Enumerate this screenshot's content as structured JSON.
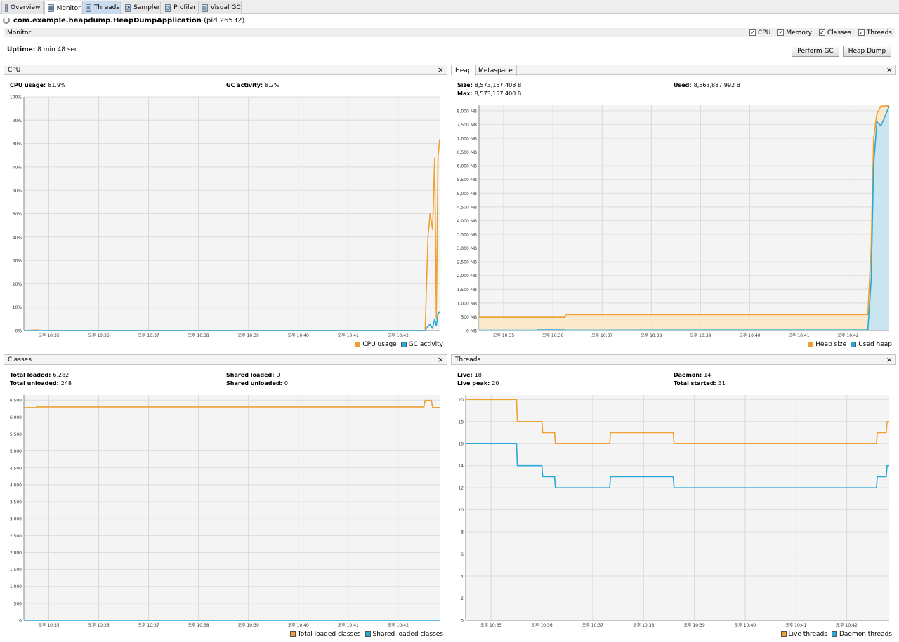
{
  "tabs": [
    {
      "label": "Overview",
      "icon": "overview-icon"
    },
    {
      "label": "Monitor",
      "icon": "monitor-icon"
    },
    {
      "label": "Threads",
      "icon": "threads-icon"
    },
    {
      "label": "Sampler",
      "icon": "sampler-icon"
    },
    {
      "label": "Profiler",
      "icon": "profiler-icon"
    },
    {
      "label": "Visual GC",
      "icon": "visual-gc-icon"
    }
  ],
  "app": {
    "name": "com.example.heapdump.HeapDumpApplication",
    "pid": "(pid 26532)"
  },
  "monitor": {
    "title": "Monitor",
    "checkboxes": [
      {
        "label": "CPU",
        "checked": true
      },
      {
        "label": "Memory",
        "checked": true
      },
      {
        "label": "Classes",
        "checked": true
      },
      {
        "label": "Threads",
        "checked": true
      }
    ],
    "uptime_label": "Uptime:",
    "uptime_value": "8 min 48 sec",
    "perform_gc": "Perform GC",
    "heap_dump": "Heap Dump"
  },
  "colors": {
    "orange": "#f0a030",
    "blue": "#29a8d8",
    "orange_fill": "#fbe6c4",
    "blue_fill": "#bfe4f5"
  },
  "cpu_panel": {
    "title": "CPU",
    "stats": [
      {
        "label": "CPU usage:",
        "value": "81.9%"
      },
      {
        "label": "GC activity:",
        "value": "8.2%"
      }
    ],
    "legend": [
      "CPU usage",
      "GC activity"
    ]
  },
  "heap_panel": {
    "tabs": [
      "Heap",
      "Metaspace"
    ],
    "stats": [
      {
        "label": "Size:",
        "value": "8,573,157,408 B"
      },
      {
        "label": "Used:",
        "value": "8,563,887,992 B"
      },
      {
        "label": "Max:",
        "value": "8,573,157,400 B"
      }
    ],
    "legend": [
      "Heap size",
      "Used heap"
    ]
  },
  "classes_panel": {
    "title": "Classes",
    "stats": [
      {
        "label": "Total loaded:",
        "value": "6,282"
      },
      {
        "label": "Shared loaded:",
        "value": "0"
      },
      {
        "label": "Total unloaded:",
        "value": "248"
      },
      {
        "label": "Shared unloaded:",
        "value": "0"
      }
    ],
    "legend": [
      "Total loaded classes",
      "Shared loaded classes"
    ]
  },
  "threads_panel": {
    "title": "Threads",
    "stats": [
      {
        "label": "Live:",
        "value": "18"
      },
      {
        "label": "Daemon:",
        "value": "14"
      },
      {
        "label": "Live peak:",
        "value": "20"
      },
      {
        "label": "Total started:",
        "value": "31"
      }
    ],
    "legend": [
      "Live threads",
      "Daemon threads"
    ]
  },
  "chart_data": [
    {
      "id": "cpu",
      "type": "line",
      "title": "CPU",
      "x_ticks": [
        "오후 10:35",
        "오후 10:36",
        "오후 10:37",
        "오후 10:38",
        "오후 10:39",
        "오후 10:40",
        "오후 10:41",
        "오후 10:42"
      ],
      "y_ticks": [
        "0%",
        "10%",
        "20%",
        "30%",
        "40%",
        "50%",
        "60%",
        "70%",
        "80%",
        "90%",
        "100%"
      ],
      "ylim": [
        0,
        100
      ],
      "x_range": [
        0,
        100
      ],
      "series": [
        {
          "name": "CPU usage",
          "x": [
            0,
            3,
            5,
            40,
            96.5,
            97.2,
            97.7,
            98.3,
            98.8,
            99.2,
            99.6,
            100
          ],
          "y": [
            0,
            0.3,
            0,
            0,
            0,
            40,
            50,
            43,
            74,
            5,
            74,
            81.9
          ]
        },
        {
          "name": "GC activity",
          "x": [
            0,
            30,
            96.5,
            97.2,
            97.7,
            98.3,
            98.8,
            99.2,
            99.6,
            100
          ],
          "y": [
            0,
            0,
            0,
            2,
            2.5,
            1,
            5,
            2,
            7,
            8.2
          ]
        }
      ]
    },
    {
      "id": "heap",
      "type": "area",
      "title": "Heap",
      "x_ticks": [
        "오후 10:35",
        "오후 10:36",
        "오후 10:37",
        "오후 10:38",
        "오후 10:39",
        "오후 10:40",
        "오후 10:41",
        "오후 10:42"
      ],
      "y_ticks": [
        "0 MB",
        "500 MB",
        "1,000 MB",
        "1,500 MB",
        "2,000 MB",
        "2,500 MB",
        "3,000 MB",
        "3,500 MB",
        "4,000 MB",
        "4,500 MB",
        "5,000 MB",
        "5,500 MB",
        "6,000 MB",
        "6,500 MB",
        "7,000 MB",
        "7,500 MB",
        "8,000 MB"
      ],
      "ylim": [
        0,
        8200
      ],
      "x_range": [
        0,
        100
      ],
      "series": [
        {
          "name": "Heap size",
          "x": [
            0,
            21,
            21.1,
            94,
            94.8,
            95.6,
            96.2,
            97,
            98,
            100
          ],
          "y": [
            480,
            480,
            580,
            580,
            580,
            3000,
            7000,
            7900,
            8170,
            8176
          ]
        },
        {
          "name": "Used heap",
          "x": [
            0,
            14,
            14.2,
            21,
            21.1,
            30,
            58,
            90,
            94,
            94.8,
            95.6,
            96.2,
            97,
            98,
            100
          ],
          "y": [
            10,
            10,
            25,
            25,
            15,
            15,
            20,
            20,
            20,
            20,
            1800,
            6000,
            7600,
            7450,
            8167
          ]
        }
      ]
    },
    {
      "id": "classes",
      "type": "line",
      "title": "Classes",
      "x_ticks": [
        "오후 10:35",
        "오후 10:36",
        "오후 10:37",
        "오후 10:38",
        "오후 10:39",
        "오후 10:40",
        "오후 10:41",
        "오후 10:42"
      ],
      "y_ticks": [
        "0",
        "500",
        "1,000",
        "1,500",
        "2,000",
        "2,500",
        "3,000",
        "3,500",
        "4,000",
        "4,500",
        "5,000",
        "5,500",
        "6,000",
        "6,500"
      ],
      "ylim": [
        0,
        6650
      ],
      "x_range": [
        0,
        100
      ],
      "series": [
        {
          "name": "Total loaded classes",
          "x": [
            0,
            2.8,
            3,
            96.2,
            96.5,
            98,
            98.3,
            100
          ],
          "y": [
            6280,
            6280,
            6300,
            6300,
            6490,
            6490,
            6282,
            6282
          ]
        },
        {
          "name": "Shared loaded classes",
          "x": [
            0,
            100
          ],
          "y": [
            0,
            0
          ]
        }
      ]
    },
    {
      "id": "threads",
      "type": "line",
      "title": "Threads",
      "x_ticks": [
        "오후 10:35",
        "오후 10:36",
        "오후 10:37",
        "오후 10:38",
        "오후 10:39",
        "오후 10:40",
        "오후 10:41",
        "오후 10:42"
      ],
      "y_ticks": [
        "0",
        "2",
        "4",
        "6",
        "8",
        "10",
        "12",
        "14",
        "16",
        "18",
        "20"
      ],
      "ylim": [
        0,
        20.4
      ],
      "x_range": [
        0,
        100
      ],
      "series": [
        {
          "name": "Live threads",
          "x": [
            0,
            12,
            12.2,
            18,
            18.2,
            21,
            21.2,
            34,
            34.2,
            49,
            49.2,
            97,
            97.2,
            99.3,
            99.5,
            100
          ],
          "y": [
            20,
            20,
            18,
            18,
            17,
            17,
            16,
            16,
            17,
            17,
            16,
            16,
            17,
            17,
            18,
            18
          ]
        },
        {
          "name": "Daemon threads",
          "x": [
            0,
            12,
            12.2,
            18,
            18.2,
            21,
            21.2,
            34,
            34.2,
            49,
            49.2,
            97,
            97.2,
            99.3,
            99.5,
            100
          ],
          "y": [
            16,
            16,
            14,
            14,
            13,
            13,
            12,
            12,
            13,
            13,
            12,
            12,
            13,
            13,
            14,
            14
          ]
        }
      ]
    }
  ]
}
